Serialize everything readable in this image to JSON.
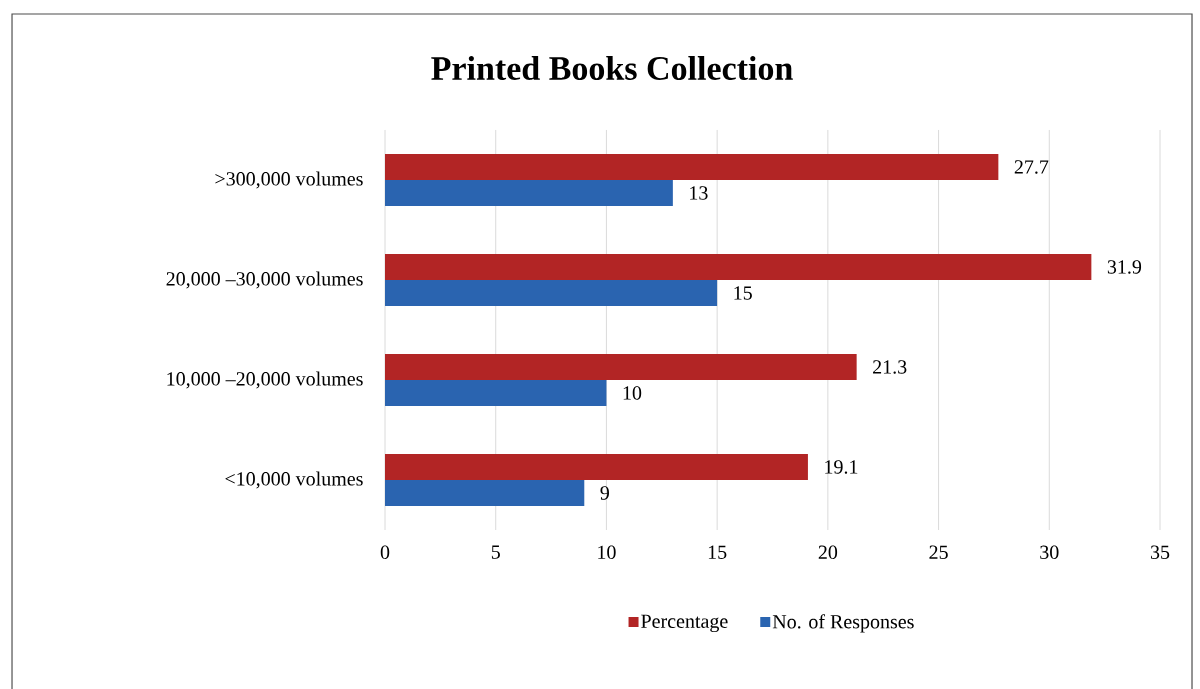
{
  "chart_data": {
    "type": "bar",
    "orientation": "horizontal",
    "title": "Printed Books Collection",
    "categories": [
      ">300,000 volumes",
      "20,000 –30,000 volumes",
      "10,000 –20,000 volumes",
      "<10,000 volumes"
    ],
    "series": [
      {
        "name": "Percentage",
        "color": "#b22525",
        "values": [
          27.7,
          31.9,
          21.3,
          19.1
        ]
      },
      {
        "name": "No. of Responses",
        "color": "#2a64b0",
        "values": [
          13,
          15,
          10,
          9
        ]
      }
    ],
    "xlim": [
      0,
      35
    ],
    "xticks": [
      0,
      5,
      10,
      15,
      20,
      25,
      30,
      35
    ],
    "grid": "x",
    "legend": "bottom",
    "data_labels": true
  }
}
